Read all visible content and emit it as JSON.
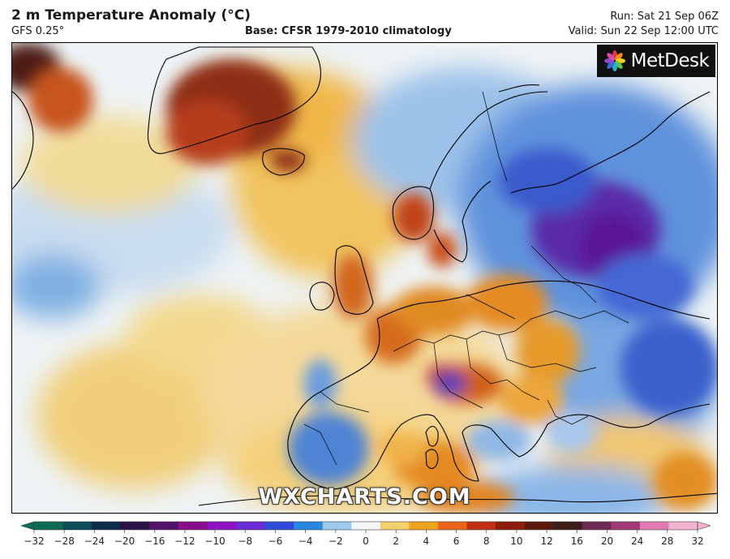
{
  "header": {
    "title": "2 m Temperature Anomaly (°C)",
    "model": "GFS 0.25°",
    "base": "Base: CFSR 1979-2010 climatology",
    "run": "Run: Sat 21 Sep 06Z",
    "valid": "Valid: Sun 22 Sep 12:00 UTC"
  },
  "logo": {
    "text": "MetDesk",
    "icon": "metdesk-flower-icon"
  },
  "watermark": "WXCHARTS.COM",
  "legend": {
    "ticks": [
      "−32",
      "−28",
      "−24",
      "−20",
      "−16",
      "−12",
      "−10",
      "−8",
      "−6",
      "−4",
      "−2",
      "0",
      "2",
      "4",
      "6",
      "8",
      "10",
      "12",
      "16",
      "20",
      "24",
      "28",
      "32"
    ],
    "colors": [
      "#0b6b52",
      "#0b4a5a",
      "#0f2a4a",
      "#2a1347",
      "#52136a",
      "#8a0c8a",
      "#8d14c4",
      "#6a2ad6",
      "#2f4ad8",
      "#2a86e0",
      "#9cc8ef",
      "#f4f7f8",
      "#f4d06a",
      "#f0a31c",
      "#e8661a",
      "#c22f12",
      "#8e1c0c",
      "#5c1a0d",
      "#3d1e1a",
      "#6e2a55",
      "#a13a78",
      "#e07ab0",
      "#f4b3cf"
    ]
  },
  "colors": {
    "warm_strong": "#a8311a",
    "warm_mid": "#e38e1c",
    "warm_light": "#f2d179",
    "cool_light": "#c7def0",
    "cool_mid": "#3e7ad0",
    "cool_strong": "#4a1a8e"
  }
}
